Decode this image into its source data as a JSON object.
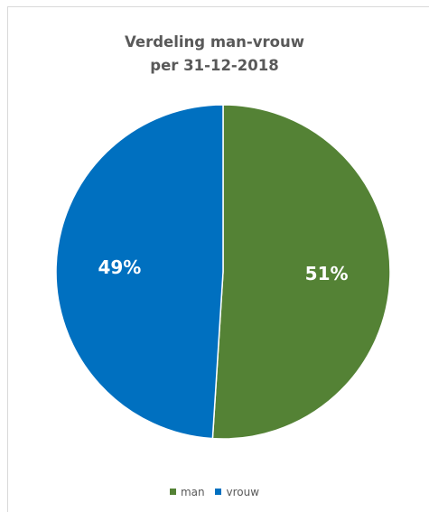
{
  "chart_data": {
    "type": "pie",
    "title_lines": [
      "Verdeling man-vrouw",
      "per 31-12-2018"
    ],
    "categories": [
      "man",
      "vrouw"
    ],
    "values": [
      51,
      49
    ],
    "labels": [
      "51%",
      "49%"
    ],
    "colors": [
      "#548235",
      "#0070c0"
    ],
    "legend_position": "bottom"
  }
}
